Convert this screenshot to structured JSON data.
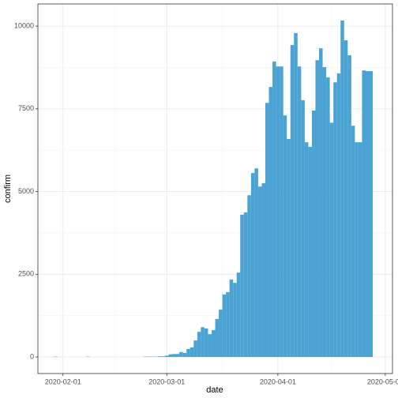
{
  "chart_data": {
    "type": "bar",
    "x_label": "date",
    "y_label": "confirm",
    "x": [
      "2020-01-30",
      "2020-02-08",
      "2020-02-24",
      "2020-02-25",
      "2020-02-26",
      "2020-02-27",
      "2020-02-28",
      "2020-02-29",
      "2020-03-01",
      "2020-03-02",
      "2020-03-03",
      "2020-03-04",
      "2020-03-05",
      "2020-03-06",
      "2020-03-07",
      "2020-03-08",
      "2020-03-09",
      "2020-03-10",
      "2020-03-11",
      "2020-03-12",
      "2020-03-13",
      "2020-03-14",
      "2020-03-15",
      "2020-03-16",
      "2020-03-17",
      "2020-03-18",
      "2020-03-19",
      "2020-03-20",
      "2020-03-21",
      "2020-03-22",
      "2020-03-23",
      "2020-03-24",
      "2020-03-25",
      "2020-03-26",
      "2020-03-27",
      "2020-03-28",
      "2020-03-29",
      "2020-03-30",
      "2020-03-31",
      "2020-04-01",
      "2020-04-02",
      "2020-04-03",
      "2020-04-04",
      "2020-04-05",
      "2020-04-06",
      "2020-04-07",
      "2020-04-08",
      "2020-04-09",
      "2020-04-10",
      "2020-04-11",
      "2020-04-12",
      "2020-04-13",
      "2020-04-14",
      "2020-04-15",
      "2020-04-16",
      "2020-04-17",
      "2020-04-18",
      "2020-04-19",
      "2020-04-20",
      "2020-04-21",
      "2020-04-22",
      "2020-04-23",
      "2020-04-24",
      "2020-04-25",
      "2020-04-26",
      "2020-04-27"
    ],
    "values": [
      10,
      10,
      10,
      10,
      10,
      10,
      20,
      20,
      40,
      80,
      90,
      90,
      150,
      120,
      240,
      290,
      500,
      760,
      900,
      860,
      690,
      810,
      1150,
      1430,
      1890,
      1960,
      2340,
      2240,
      2550,
      4300,
      4370,
      4890,
      5560,
      5700,
      5150,
      5250,
      7680,
      8160,
      8930,
      8780,
      8780,
      7300,
      6590,
      9430,
      9790,
      8780,
      7760,
      6490,
      6350,
      7450,
      8970,
      9330,
      8760,
      8450,
      7080,
      8300,
      8570,
      10170,
      9570,
      9120,
      6990,
      6490,
      6490,
      8660,
      8640,
      8640
    ],
    "color": "#4ba3d3",
    "xlim": [
      "2020-01-25",
      "2020-05-03"
    ],
    "xticks": [
      "2020-02-01",
      "2020-03-01",
      "2020-04-01",
      "2020-05-01"
    ],
    "ylim": [
      -500,
      10670
    ],
    "yticks": [
      0,
      2500,
      5000,
      7500,
      10000
    ],
    "grid": true
  }
}
